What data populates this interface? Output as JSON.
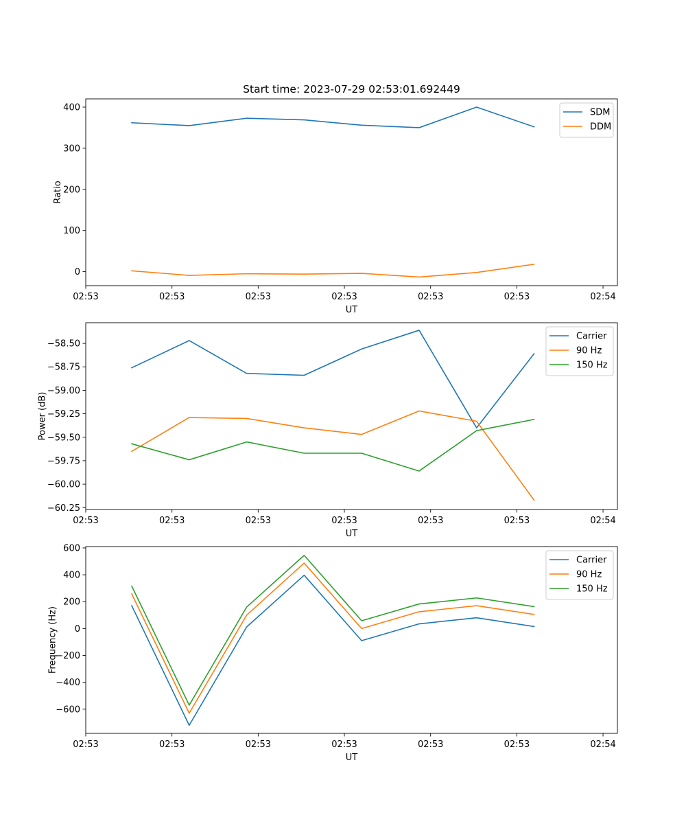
{
  "title": "Start time: 2023-07-29 02:53:01.692449",
  "chart_data": [
    {
      "type": "line",
      "title": "Start time: 2023-07-29 02:53:01.692449",
      "xlabel": "UT",
      "ylabel": "Ratio",
      "x": [
        1,
        2,
        3,
        4,
        5,
        6,
        7,
        8
      ],
      "xlim": [
        0.2,
        9.45
      ],
      "xticks": [
        0.2,
        1.7,
        3.2,
        4.7,
        6.2,
        7.7,
        9.2
      ],
      "xtick_labels": [
        "02:53",
        "02:53",
        "02:53",
        "02:53",
        "02:53",
        "02:53",
        "02:54"
      ],
      "ylim": [
        -34,
        420
      ],
      "yticks": [
        0,
        100,
        200,
        300,
        400
      ],
      "ytick_labels": [
        "0",
        "100",
        "200",
        "300",
        "400"
      ],
      "legend_position": "upper right",
      "series": [
        {
          "name": "SDM",
          "color": "#1f77b4",
          "values": [
            362,
            355,
            373,
            369,
            356,
            350,
            400,
            352
          ]
        },
        {
          "name": "DDM",
          "color": "#ff7f0e",
          "values": [
            2,
            -9,
            -5,
            -6,
            -4,
            -13,
            -2,
            18
          ]
        }
      ]
    },
    {
      "type": "line",
      "title": "",
      "xlabel": "UT",
      "ylabel": "Power (dB)",
      "x": [
        1,
        2,
        3,
        4,
        5,
        6,
        7,
        8
      ],
      "xlim": [
        0.2,
        9.45
      ],
      "xticks": [
        0.2,
        1.7,
        3.2,
        4.7,
        6.2,
        7.7,
        9.2
      ],
      "xtick_labels": [
        "02:53",
        "02:53",
        "02:53",
        "02:53",
        "02:53",
        "02:53",
        "02:54"
      ],
      "ylim": [
        -60.27,
        -58.28
      ],
      "yticks": [
        -60.25,
        -60.0,
        -59.75,
        -59.5,
        -59.25,
        -59.0,
        -58.75,
        -58.5
      ],
      "ytick_labels": [
        "−60.25",
        "−60.00",
        "−59.75",
        "−59.50",
        "−59.25",
        "−59.00",
        "−58.75",
        "−58.50"
      ],
      "legend_position": "upper right",
      "series": [
        {
          "name": "Carrier",
          "color": "#1f77b4",
          "values": [
            -58.76,
            -58.47,
            -58.82,
            -58.84,
            -58.56,
            -58.36,
            -59.4,
            -58.61
          ]
        },
        {
          "name": "90 Hz",
          "color": "#ff7f0e",
          "values": [
            -59.65,
            -59.29,
            -59.3,
            -59.4,
            -59.47,
            -59.22,
            -59.33,
            -60.17
          ]
        },
        {
          "name": "150 Hz",
          "color": "#2ca02c",
          "values": [
            -59.57,
            -59.74,
            -59.55,
            -59.67,
            -59.67,
            -59.86,
            -59.43,
            -59.31
          ]
        }
      ]
    },
    {
      "type": "line",
      "title": "",
      "xlabel": "UT",
      "ylabel": "Frequency (Hz)",
      "x": [
        1,
        2,
        3,
        4,
        5,
        6,
        7,
        8
      ],
      "xlim": [
        0.2,
        9.45
      ],
      "xticks": [
        0.2,
        1.7,
        3.2,
        4.7,
        6.2,
        7.7,
        9.2
      ],
      "xtick_labels": [
        "02:53",
        "02:53",
        "02:53",
        "02:53",
        "02:53",
        "02:53",
        "02:54"
      ],
      "ylim": [
        -780,
        610
      ],
      "yticks": [
        -600,
        -400,
        -200,
        0,
        200,
        400,
        600
      ],
      "ytick_labels": [
        "−600",
        "−400",
        "−200",
        "0",
        "200",
        "400",
        "600"
      ],
      "legend_position": "upper right",
      "series": [
        {
          "name": "Carrier",
          "color": "#1f77b4",
          "values": [
            170,
            -720,
            12,
            397,
            -90,
            35,
            80,
            15
          ]
        },
        {
          "name": "90 Hz",
          "color": "#ff7f0e",
          "values": [
            258,
            -630,
            100,
            487,
            0,
            125,
            170,
            105
          ]
        },
        {
          "name": "150 Hz",
          "color": "#2ca02c",
          "values": [
            316,
            -570,
            160,
            545,
            58,
            183,
            228,
            163
          ]
        }
      ]
    }
  ]
}
